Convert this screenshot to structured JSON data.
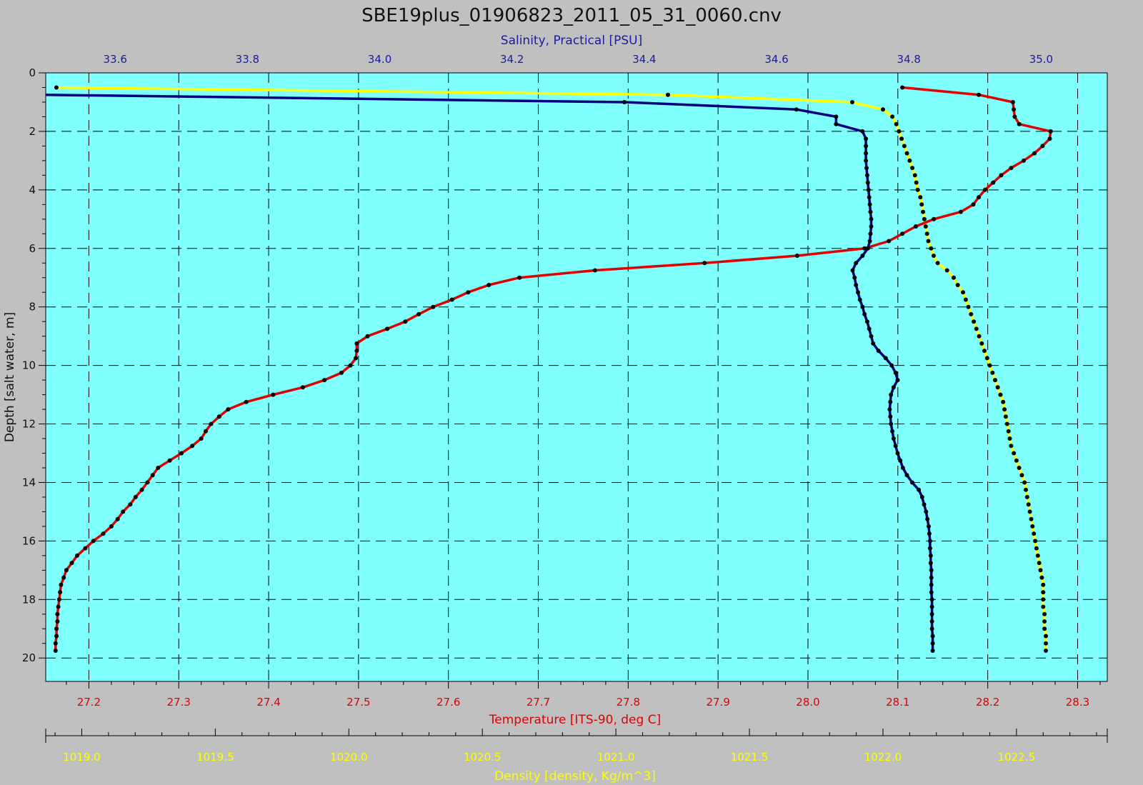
{
  "colors": {
    "background": "#c0c0c0",
    "plot_area": "#80ffff",
    "temperature": "#e00000",
    "salinity": "#000080",
    "density": "#ffff00",
    "salinity_text": "#1c1ca0",
    "temperature_text": "#e00000",
    "density_text": "#ffff00",
    "grid": "#000000",
    "marker": "#000000"
  },
  "chart_data": {
    "type": "line",
    "title": "SBE19plus_01906823_2011_05_31_0060.cnv",
    "grid": true,
    "y_axis": {
      "label": "Depth [salt water, m]",
      "range": [
        0,
        20.8
      ],
      "inverted": true,
      "ticks": [
        "0",
        "2",
        "4",
        "6",
        "8",
        "10",
        "12",
        "14",
        "16",
        "18",
        "20"
      ]
    },
    "x_axes": [
      {
        "id": "salinity",
        "position": "top",
        "label": "Salinity, Practical [PSU]",
        "range": [
          33.495,
          35.1
        ],
        "ticks": [
          "33.6",
          "33.8",
          "34.0",
          "34.2",
          "34.4",
          "34.6",
          "34.8",
          "35.0"
        ]
      },
      {
        "id": "temperature",
        "position": "bottom",
        "label": "Temperature [ITS-90, deg C]",
        "range": [
          27.152,
          28.333
        ],
        "ticks": [
          "27.2",
          "27.3",
          "27.4",
          "27.5",
          "27.6",
          "27.7",
          "27.8",
          "27.9",
          "28.0",
          "28.1",
          "28.2",
          "28.3"
        ]
      },
      {
        "id": "density",
        "position": "bottom-second",
        "label": "Density [density, Kg/m^3]",
        "range": [
          1018.865,
          1022.84
        ],
        "ticks": [
          "1019.0",
          "1019.5",
          "1020.0",
          "1020.5",
          "1021.0",
          "1021.5",
          "1022.0",
          "1022.5"
        ]
      }
    ],
    "series": [
      {
        "id": "temperature",
        "axis": "temperature",
        "depth": [
          0.5,
          0.75,
          1.0,
          1.25,
          1.5,
          1.75,
          2.0,
          2.25,
          2.5,
          2.75,
          3.0,
          3.25,
          3.5,
          3.75,
          4.0,
          4.25,
          4.5,
          4.75,
          5.0,
          5.25,
          5.5,
          5.75,
          6.0,
          6.25,
          6.5,
          6.75,
          7.0,
          7.25,
          7.5,
          7.75,
          8.0,
          8.25,
          8.5,
          8.75,
          9.0,
          9.25,
          9.5,
          9.75,
          10.0,
          10.25,
          10.5,
          10.75,
          11.0,
          11.25,
          11.5,
          11.75,
          12.0,
          12.25,
          12.5,
          12.75,
          13.0,
          13.25,
          13.5,
          13.75,
          14.0,
          14.25,
          14.5,
          14.75,
          15.0,
          15.25,
          15.5,
          15.75,
          16.0,
          16.25,
          16.5,
          16.75,
          17.0,
          17.25,
          17.5,
          17.75,
          18.0,
          18.25,
          18.5,
          18.75,
          19.0,
          19.25,
          19.5,
          19.75
        ],
        "values": [
          28.105,
          28.19,
          28.228,
          28.229,
          28.23,
          28.235,
          28.27,
          28.269,
          28.261,
          28.252,
          28.24,
          28.226,
          28.215,
          28.206,
          28.197,
          28.19,
          28.184,
          28.17,
          28.14,
          28.12,
          28.105,
          28.09,
          28.063,
          27.988,
          27.885,
          27.763,
          27.679,
          27.645,
          27.622,
          27.604,
          27.583,
          27.567,
          27.552,
          27.532,
          27.51,
          27.498,
          27.498,
          27.497,
          27.491,
          27.481,
          27.462,
          27.438,
          27.405,
          27.375,
          27.355,
          27.345,
          27.336,
          27.33,
          27.325,
          27.315,
          27.303,
          27.29,
          27.277,
          27.271,
          27.265,
          27.259,
          27.252,
          27.246,
          27.238,
          27.232,
          27.225,
          27.216,
          27.205,
          27.196,
          27.187,
          27.181,
          27.175,
          27.172,
          27.169,
          27.168,
          27.167,
          27.166,
          27.165,
          27.165,
          27.164,
          27.164,
          27.163,
          27.163
        ]
      },
      {
        "id": "salinity",
        "axis": "salinity",
        "depth": [
          0.75,
          1.0,
          1.25,
          1.5,
          1.75,
          2.0,
          2.25,
          2.5,
          2.75,
          3.0,
          3.25,
          3.5,
          3.75,
          4.0,
          4.25,
          4.5,
          4.75,
          5.0,
          5.25,
          5.5,
          5.75,
          6.0,
          6.25,
          6.5,
          6.75,
          7.0,
          7.25,
          7.5,
          7.75,
          8.0,
          8.25,
          8.5,
          8.75,
          9.0,
          9.25,
          9.5,
          9.75,
          10.0,
          10.25,
          10.5,
          10.75,
          11.0,
          11.25,
          11.5,
          11.75,
          12.0,
          12.25,
          12.5,
          12.75,
          13.0,
          13.25,
          13.5,
          13.75,
          14.0,
          14.25,
          14.5,
          14.75,
          15.0,
          15.25,
          15.5,
          15.75,
          16.0,
          16.25,
          16.5,
          16.75,
          17.0,
          17.25,
          17.5,
          17.75,
          18.0,
          18.25,
          18.5,
          18.75,
          19.0,
          19.25,
          19.5,
          19.75
        ],
        "values": [
          33.49,
          34.37,
          34.63,
          34.69,
          34.69,
          34.73,
          34.735,
          34.735,
          34.735,
          34.735,
          34.736,
          34.737,
          34.738,
          34.739,
          34.74,
          34.741,
          34.742,
          34.743,
          34.743,
          34.742,
          34.741,
          34.738,
          34.73,
          34.72,
          34.715,
          34.718,
          34.72,
          34.723,
          34.726,
          34.73,
          34.733,
          34.737,
          34.74,
          34.743,
          34.746,
          34.754,
          34.765,
          34.774,
          34.78,
          34.783,
          34.777,
          34.773,
          34.772,
          34.771,
          34.772,
          34.773,
          34.775,
          34.777,
          34.78,
          34.783,
          34.787,
          34.791,
          34.797,
          34.805,
          34.815,
          34.82,
          34.823,
          34.826,
          34.828,
          34.83,
          34.831,
          34.832,
          34.832,
          34.833,
          34.833,
          34.834,
          34.834,
          34.834,
          34.834,
          34.835,
          34.835,
          34.835,
          34.835,
          34.835,
          34.836,
          34.836,
          34.836
        ]
      },
      {
        "id": "density",
        "axis": "density",
        "depth": [
          0.5,
          0.75,
          1.0,
          1.25,
          1.5,
          1.75,
          2.0,
          2.25,
          2.5,
          2.75,
          3.0,
          3.25,
          3.5,
          3.75,
          4.0,
          4.25,
          4.5,
          4.75,
          5.0,
          5.25,
          5.5,
          5.75,
          6.0,
          6.25,
          6.5,
          6.75,
          7.0,
          7.25,
          7.5,
          7.75,
          8.0,
          8.25,
          8.5,
          8.75,
          9.0,
          9.25,
          9.5,
          9.75,
          10.0,
          10.25,
          10.5,
          10.75,
          11.0,
          11.25,
          11.5,
          11.75,
          12.0,
          12.25,
          12.5,
          12.75,
          13.0,
          13.25,
          13.5,
          13.75,
          14.0,
          14.25,
          14.5,
          14.75,
          15.0,
          15.25,
          15.5,
          15.75,
          16.0,
          16.25,
          16.5,
          16.75,
          17.0,
          17.25,
          17.5,
          17.75,
          18.0,
          18.25,
          18.5,
          18.75,
          19.0,
          19.25,
          19.5,
          19.75
        ],
        "values": [
          1018.905,
          1021.195,
          1021.885,
          1022.0,
          1022.035,
          1022.05,
          1022.06,
          1022.07,
          1022.08,
          1022.09,
          1022.1,
          1022.11,
          1022.12,
          1022.125,
          1022.13,
          1022.14,
          1022.145,
          1022.15,
          1022.155,
          1022.16,
          1022.165,
          1022.17,
          1022.18,
          1022.19,
          1022.205,
          1022.24,
          1022.265,
          1022.28,
          1022.3,
          1022.31,
          1022.32,
          1022.33,
          1022.34,
          1022.35,
          1022.36,
          1022.37,
          1022.38,
          1022.39,
          1022.4,
          1022.41,
          1022.42,
          1022.43,
          1022.44,
          1022.45,
          1022.455,
          1022.46,
          1022.465,
          1022.47,
          1022.475,
          1022.48,
          1022.49,
          1022.5,
          1022.51,
          1022.52,
          1022.53,
          1022.535,
          1022.54,
          1022.545,
          1022.55,
          1022.555,
          1022.56,
          1022.565,
          1022.57,
          1022.575,
          1022.58,
          1022.585,
          1022.59,
          1022.595,
          1022.6,
          1022.6,
          1022.6,
          1022.6,
          1022.605,
          1022.605,
          1022.605,
          1022.61,
          1022.61,
          1022.61
        ]
      }
    ]
  }
}
